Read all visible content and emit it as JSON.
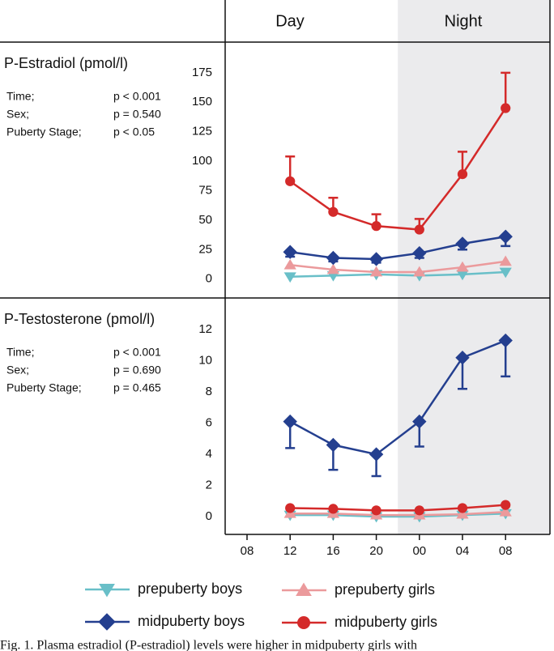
{
  "header": {
    "columns": [
      "Day",
      "Night"
    ]
  },
  "caption": "Fig. 1. Plasma estradiol (P-estradiol) levels were higher in midpuberty girls with",
  "chart_data": [
    {
      "type": "line",
      "title": "P-Estradiol (pmol/l)",
      "stats": [
        {
          "label": "Time;",
          "value": "p < 0.001"
        },
        {
          "label": "Sex;",
          "value": "p = 0.540"
        },
        {
          "label": "Puberty Stage;",
          "value": "p < 0.05"
        }
      ],
      "categories": [
        "08",
        "12",
        "16",
        "20",
        "00",
        "04",
        "08"
      ],
      "ylim": [
        -16,
        201
      ],
      "yticks": [
        0,
        25,
        50,
        75,
        100,
        125,
        150,
        175
      ],
      "series": [
        {
          "name": "prepuberty boys",
          "color": "#69bfc8",
          "marker": "triangle-down",
          "values": [
            null,
            2,
            3,
            4,
            3,
            4,
            6
          ]
        },
        {
          "name": "prepuberty girls",
          "color": "#eb9a9c",
          "marker": "triangle-up",
          "values": [
            null,
            12,
            8,
            6,
            6,
            10,
            15
          ]
        },
        {
          "name": "midpuberty boys",
          "color": "#243f8f",
          "marker": "diamond",
          "values": [
            null,
            23,
            18,
            17,
            22,
            30,
            36
          ],
          "errors": [
            null,
            4,
            3,
            3,
            4,
            5,
            8
          ],
          "error_side": "down"
        },
        {
          "name": "midpuberty girls",
          "color": "#d42a2a",
          "marker": "circle",
          "values": [
            null,
            83,
            57,
            45,
            42,
            89,
            145
          ],
          "errors": [
            null,
            21,
            12,
            10,
            9,
            19,
            30
          ],
          "error_side": "up"
        }
      ]
    },
    {
      "type": "line",
      "title": "P-Testosterone (pmol/l)",
      "stats": [
        {
          "label": "Time;",
          "value": "p < 0.001"
        },
        {
          "label": "Sex;",
          "value": "p = 0.690"
        },
        {
          "label": "Puberty Stage;",
          "value": "p = 0.465"
        }
      ],
      "categories": [
        "08",
        "12",
        "16",
        "20",
        "00",
        "04",
        "08"
      ],
      "ylim": [
        -1.14,
        14.03
      ],
      "yticks": [
        0,
        2,
        4,
        6,
        8,
        10,
        12
      ],
      "series": [
        {
          "name": "prepuberty boys",
          "color": "#69bfc8",
          "marker": "triangle-down",
          "values": [
            null,
            0.1,
            0.1,
            0.0,
            0.0,
            0.1,
            0.2
          ]
        },
        {
          "name": "prepuberty girls",
          "color": "#eb9a9c",
          "marker": "triangle-up",
          "values": [
            null,
            0.2,
            0.2,
            0.1,
            0.1,
            0.15,
            0.3
          ]
        },
        {
          "name": "midpuberty boys",
          "color": "#243f8f",
          "marker": "diamond",
          "values": [
            null,
            6.1,
            4.6,
            4.0,
            6.1,
            10.2,
            11.3
          ],
          "errors": [
            null,
            1.7,
            1.6,
            1.4,
            1.6,
            2.0,
            2.3
          ],
          "error_side": "down"
        },
        {
          "name": "midpuberty girls",
          "color": "#d42a2a",
          "marker": "circle",
          "values": [
            null,
            0.55,
            0.5,
            0.4,
            0.4,
            0.55,
            0.75
          ]
        }
      ]
    }
  ]
}
